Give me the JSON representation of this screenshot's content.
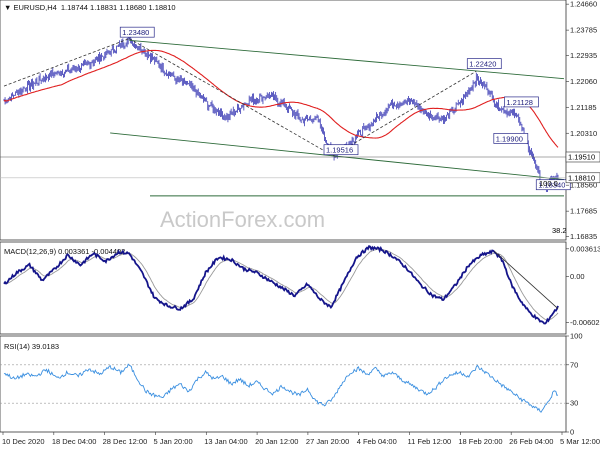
{
  "header": {
    "symbol": "EURUSD,H4",
    "ohlc": "1.18744 1.18831 1.18680 1.18810"
  },
  "watermark": "ActionForex.com",
  "colors": {
    "candle": "#1a1aa8",
    "ma": "#e02020",
    "channel": "#2e6b3a",
    "macd": "#14148a",
    "signal": "#9a9a9a",
    "rsi": "#3a8fe0",
    "level_box": "#2a2a8a",
    "price_line": "#555555"
  },
  "chart_data": [
    {
      "type": "line",
      "name": "price",
      "ylim": [
        1.16713,
        1.248
      ],
      "ytick_labels": [
        {
          "v": 1.2466,
          "t": "1.24660"
        },
        {
          "v": 1.23785,
          "t": "1.23785"
        },
        {
          "v": 1.22935,
          "t": "1.22935"
        },
        {
          "v": 1.2206,
          "t": "1.22060"
        },
        {
          "v": 1.21185,
          "t": "1.21185"
        },
        {
          "v": 1.2031,
          "t": "1.20310"
        },
        {
          "v": 1.1856,
          "t": "1.18560"
        },
        {
          "v": 1.17685,
          "t": "1.17685"
        },
        {
          "v": 1.16835,
          "t": "1.16835"
        }
      ],
      "price_tags": [
        {
          "v": 1.1951,
          "t": "1.19510"
        },
        {
          "v": 1.1881,
          "t": "1.18810"
        }
      ],
      "levels": [
        {
          "t": "1.23480",
          "v": 1.2348,
          "i": 118
        },
        {
          "t": "1.22420",
          "v": 1.2242,
          "i": 445
        },
        {
          "t": "1.21128",
          "v": 1.2113,
          "i": 480
        },
        {
          "t": "1.19900",
          "v": 1.199,
          "i": 470
        },
        {
          "t": "1.19516",
          "v": 1.1952,
          "i": 310
        },
        {
          "t": "1.18340",
          "v": 1.1834,
          "i": 510
        }
      ],
      "annotations": [
        {
          "t": "100.0",
          "v": 1.1853
        },
        {
          "t": "38.2",
          "v": 1.1695
        }
      ],
      "x_dates": [
        "10 Dec 2020",
        "18 Dec 04:00",
        "28 Dec 12:00",
        "5 Jan 20:00",
        "13 Jan 04:00",
        "20 Jan 12:00",
        "27 Jan 20:00",
        "4 Feb 04:00",
        "11 Feb 12:00",
        "18 Feb 20:00",
        "26 Feb 04:00",
        "5 Mar 12:00"
      ],
      "anchors": [
        [
          0,
          1.214
        ],
        [
          20,
          1.2185
        ],
        [
          45,
          1.223
        ],
        [
          70,
          1.225
        ],
        [
          95,
          1.2295
        ],
        [
          118,
          1.2345
        ],
        [
          135,
          1.23
        ],
        [
          155,
          1.223
        ],
        [
          175,
          1.219
        ],
        [
          195,
          1.212
        ],
        [
          210,
          1.2085
        ],
        [
          230,
          1.214
        ],
        [
          250,
          1.216
        ],
        [
          265,
          1.2125
        ],
        [
          280,
          1.2075
        ],
        [
          295,
          1.208
        ],
        [
          310,
          1.1955
        ],
        [
          325,
          1.2
        ],
        [
          345,
          1.206
        ],
        [
          365,
          1.213
        ],
        [
          385,
          1.214
        ],
        [
          400,
          1.209
        ],
        [
          415,
          1.208
        ],
        [
          430,
          1.2135
        ],
        [
          445,
          1.2215
        ],
        [
          455,
          1.2185
        ],
        [
          465,
          1.212
        ],
        [
          475,
          1.2105
        ],
        [
          485,
          1.2085
        ],
        [
          493,
          1.199
        ],
        [
          500,
          1.1935
        ],
        [
          505,
          1.188
        ],
        [
          510,
          1.1845
        ],
        [
          516,
          1.1875
        ],
        [
          522,
          1.1881
        ]
      ]
    },
    {
      "type": "line",
      "name": "MACD(12,26,9) 0.003361 -0.004402",
      "ylim": [
        -0.0075,
        0.0045
      ],
      "ytick_labels": [
        {
          "v": 0.003613,
          "t": "0.003613"
        },
        {
          "v": 0.0,
          "t": "0.00"
        },
        {
          "v": -0.006026,
          "t": "-0.006026"
        }
      ],
      "anchors": [
        [
          0,
          -0.001
        ],
        [
          12,
          0.0005
        ],
        [
          24,
          0.0015
        ],
        [
          36,
          -0.0005
        ],
        [
          48,
          0.001
        ],
        [
          60,
          0.0028
        ],
        [
          72,
          0.0015
        ],
        [
          84,
          0.003
        ],
        [
          96,
          0.002
        ],
        [
          108,
          0.0032
        ],
        [
          118,
          0.003
        ],
        [
          130,
          0.0005
        ],
        [
          142,
          -0.0028
        ],
        [
          154,
          -0.0038
        ],
        [
          166,
          -0.0042
        ],
        [
          178,
          -0.003
        ],
        [
          190,
          0.0005
        ],
        [
          202,
          0.0025
        ],
        [
          214,
          0.0022
        ],
        [
          226,
          0.001
        ],
        [
          238,
          0.0005
        ],
        [
          250,
          -0.0005
        ],
        [
          262,
          -0.0015
        ],
        [
          274,
          -0.0025
        ],
        [
          286,
          -0.001
        ],
        [
          298,
          -0.003
        ],
        [
          308,
          -0.004
        ],
        [
          320,
          -0.0008
        ],
        [
          332,
          0.0025
        ],
        [
          344,
          0.0038
        ],
        [
          356,
          0.0035
        ],
        [
          368,
          0.0025
        ],
        [
          380,
          0.001
        ],
        [
          392,
          -0.001
        ],
        [
          404,
          -0.0025
        ],
        [
          414,
          -0.003
        ],
        [
          426,
          -0.001
        ],
        [
          438,
          0.0015
        ],
        [
          450,
          0.0028
        ],
        [
          462,
          0.0033
        ],
        [
          470,
          0.002
        ],
        [
          478,
          -0.001
        ],
        [
          486,
          -0.003
        ],
        [
          494,
          -0.0045
        ],
        [
          502,
          -0.0055
        ],
        [
          510,
          -0.0062
        ],
        [
          516,
          -0.005
        ],
        [
          522,
          -0.004
        ]
      ]
    },
    {
      "type": "line",
      "name": "RSI(14) 39.0183",
      "ylim": [
        0,
        100
      ],
      "ytick_labels": [
        {
          "v": 100,
          "t": "100"
        },
        {
          "v": 70,
          "t": "70"
        },
        {
          "v": 30,
          "t": "30"
        },
        {
          "v": 0,
          "t": "0"
        }
      ],
      "anchors": [
        [
          0,
          62
        ],
        [
          10,
          55
        ],
        [
          20,
          60
        ],
        [
          30,
          58
        ],
        [
          40,
          65
        ],
        [
          50,
          56
        ],
        [
          60,
          62
        ],
        [
          70,
          58
        ],
        [
          80,
          66
        ],
        [
          90,
          60
        ],
        [
          100,
          68
        ],
        [
          110,
          62
        ],
        [
          118,
          70
        ],
        [
          126,
          55
        ],
        [
          134,
          42
        ],
        [
          142,
          38
        ],
        [
          150,
          36
        ],
        [
          158,
          45
        ],
        [
          166,
          50
        ],
        [
          174,
          42
        ],
        [
          182,
          55
        ],
        [
          190,
          62
        ],
        [
          198,
          55
        ],
        [
          206,
          58
        ],
        [
          214,
          50
        ],
        [
          222,
          55
        ],
        [
          230,
          48
        ],
        [
          238,
          52
        ],
        [
          246,
          45
        ],
        [
          254,
          40
        ],
        [
          262,
          48
        ],
        [
          270,
          42
        ],
        [
          278,
          38
        ],
        [
          286,
          45
        ],
        [
          294,
          32
        ],
        [
          302,
          28
        ],
        [
          310,
          35
        ],
        [
          318,
          50
        ],
        [
          326,
          62
        ],
        [
          334,
          66
        ],
        [
          342,
          60
        ],
        [
          350,
          66
        ],
        [
          358,
          58
        ],
        [
          366,
          62
        ],
        [
          374,
          55
        ],
        [
          382,
          50
        ],
        [
          390,
          45
        ],
        [
          398,
          40
        ],
        [
          406,
          45
        ],
        [
          414,
          55
        ],
        [
          422,
          60
        ],
        [
          430,
          62
        ],
        [
          438,
          58
        ],
        [
          446,
          68
        ],
        [
          454,
          62
        ],
        [
          462,
          55
        ],
        [
          470,
          48
        ],
        [
          478,
          42
        ],
        [
          486,
          35
        ],
        [
          494,
          30
        ],
        [
          500,
          25
        ],
        [
          506,
          22
        ],
        [
          512,
          30
        ],
        [
          518,
          42
        ],
        [
          522,
          39
        ]
      ]
    }
  ]
}
